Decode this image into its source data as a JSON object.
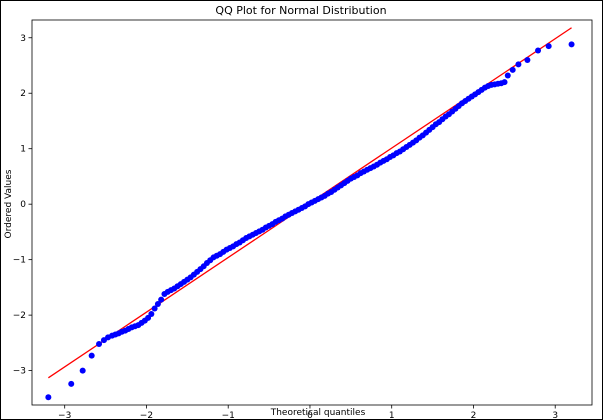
{
  "chart_data": {
    "type": "scatter",
    "title": "QQ Plot for Normal Distribution",
    "xlabel": "Theoretical quantiles",
    "ylabel": "Ordered Values",
    "xlim": [
      -3.4,
      3.45
    ],
    "ylim": [
      -3.62,
      3.32
    ],
    "xticks": [
      -3,
      -2,
      -1,
      0,
      1,
      2,
      3
    ],
    "yticks": [
      -3,
      -2,
      -1,
      0,
      1,
      2,
      3
    ],
    "grid": false,
    "legend": "none",
    "colors": {
      "points": "#0000ff",
      "line": "#ff0000"
    },
    "fit_line": {
      "x": [
        -3.2,
        3.2
      ],
      "y": [
        -3.13,
        3.18
      ]
    },
    "points": {
      "x": [
        -3.2,
        -2.92,
        -2.78,
        -2.67,
        -2.58,
        -2.52,
        -2.47,
        -2.42,
        -2.38,
        -2.34,
        -2.3,
        -2.26,
        -2.22,
        -2.18,
        -2.14,
        -2.1,
        -2.06,
        -2.02,
        -1.98,
        -1.94,
        -1.9,
        -1.86,
        -1.82,
        -1.78,
        -1.74,
        -1.7,
        -1.66,
        -1.62,
        -1.58,
        -1.54,
        -1.5,
        -1.46,
        -1.42,
        -1.38,
        -1.34,
        -1.3,
        -1.26,
        -1.22,
        -1.18,
        -1.14,
        -1.1,
        -1.06,
        -1.02,
        -0.98,
        -0.94,
        -0.9,
        -0.86,
        -0.82,
        -0.78,
        -0.74,
        -0.7,
        -0.66,
        -0.62,
        -0.58,
        -0.54,
        -0.5,
        -0.46,
        -0.42,
        -0.38,
        -0.34,
        -0.3,
        -0.26,
        -0.22,
        -0.18,
        -0.14,
        -0.1,
        -0.06,
        -0.02,
        0.02,
        0.06,
        0.1,
        0.14,
        0.18,
        0.22,
        0.26,
        0.3,
        0.34,
        0.38,
        0.42,
        0.46,
        0.5,
        0.54,
        0.58,
        0.62,
        0.66,
        0.7,
        0.74,
        0.78,
        0.82,
        0.86,
        0.9,
        0.94,
        0.98,
        1.02,
        1.06,
        1.1,
        1.14,
        1.18,
        1.22,
        1.26,
        1.3,
        1.34,
        1.38,
        1.42,
        1.46,
        1.5,
        1.54,
        1.58,
        1.62,
        1.66,
        1.7,
        1.74,
        1.78,
        1.82,
        1.86,
        1.9,
        1.94,
        1.98,
        2.02,
        2.06,
        2.1,
        2.14,
        2.18,
        2.22,
        2.26,
        2.3,
        2.34,
        2.38,
        2.42,
        2.48,
        2.55,
        2.66,
        2.79,
        2.92,
        3.2
      ],
      "y": [
        -3.48,
        -3.24,
        -3.0,
        -2.73,
        -2.52,
        -2.45,
        -2.4,
        -2.37,
        -2.35,
        -2.33,
        -2.3,
        -2.28,
        -2.25,
        -2.22,
        -2.2,
        -2.18,
        -2.14,
        -2.1,
        -2.05,
        -1.98,
        -1.88,
        -1.8,
        -1.72,
        -1.62,
        -1.58,
        -1.55,
        -1.52,
        -1.48,
        -1.44,
        -1.4,
        -1.36,
        -1.32,
        -1.27,
        -1.22,
        -1.17,
        -1.12,
        -1.06,
        -1.01,
        -0.96,
        -0.93,
        -0.9,
        -0.86,
        -0.82,
        -0.79,
        -0.76,
        -0.72,
        -0.69,
        -0.65,
        -0.61,
        -0.58,
        -0.55,
        -0.52,
        -0.49,
        -0.46,
        -0.42,
        -0.39,
        -0.36,
        -0.32,
        -0.29,
        -0.26,
        -0.22,
        -0.19,
        -0.16,
        -0.13,
        -0.1,
        -0.07,
        -0.04,
        0.0,
        0.03,
        0.06,
        0.09,
        0.12,
        0.15,
        0.19,
        0.22,
        0.26,
        0.3,
        0.34,
        0.38,
        0.42,
        0.46,
        0.49,
        0.52,
        0.56,
        0.59,
        0.62,
        0.65,
        0.68,
        0.71,
        0.75,
        0.78,
        0.81,
        0.85,
        0.88,
        0.92,
        0.95,
        0.99,
        1.03,
        1.07,
        1.11,
        1.15,
        1.2,
        1.24,
        1.29,
        1.34,
        1.39,
        1.44,
        1.48,
        1.53,
        1.58,
        1.62,
        1.67,
        1.72,
        1.77,
        1.82,
        1.86,
        1.9,
        1.94,
        1.98,
        2.02,
        2.06,
        2.1,
        2.13,
        2.15,
        2.16,
        2.17,
        2.18,
        2.2,
        2.32,
        2.42,
        2.52,
        2.6,
        2.77,
        2.85,
        2.88
      ]
    }
  }
}
